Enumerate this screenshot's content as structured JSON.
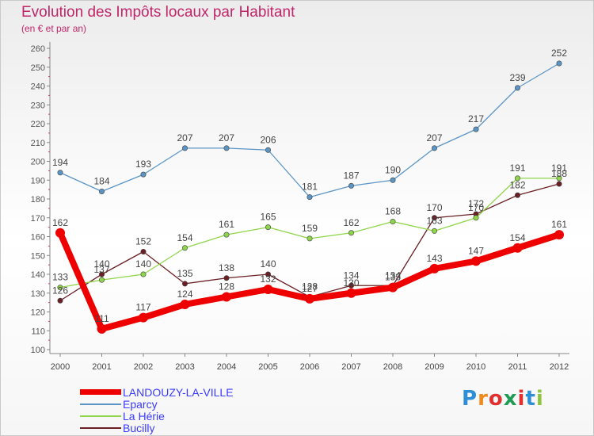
{
  "title": "Evolution des Impôts locaux par Habitant",
  "subtitle": "(en € et par an)",
  "logo_text": "Proxiti",
  "chart_data": {
    "type": "line",
    "x": [
      "2000",
      "2001",
      "2002",
      "2003",
      "2004",
      "2005",
      "2006",
      "2007",
      "2008",
      "2009",
      "2010",
      "2011",
      "2012"
    ],
    "ylim": [
      100,
      260
    ],
    "yticks": [
      100,
      110,
      120,
      130,
      140,
      150,
      160,
      170,
      180,
      190,
      200,
      210,
      220,
      230,
      240,
      250,
      260
    ],
    "grid": false,
    "legend_position": "bottom-left",
    "series": [
      {
        "name": "LANDOUZY-LA-VILLE",
        "color": "#ee0000",
        "values": [
          162,
          111,
          117,
          124,
          128,
          132,
          127,
          130,
          133,
          143,
          147,
          154,
          161
        ]
      },
      {
        "name": "Eparcy",
        "color": "#5b95c6",
        "values": [
          194,
          184,
          193,
          207,
          207,
          206,
          181,
          187,
          190,
          207,
          217,
          239,
          252
        ]
      },
      {
        "name": "La Hérie",
        "color": "#8fd54a",
        "values": [
          133,
          137,
          140,
          154,
          161,
          165,
          159,
          162,
          168,
          163,
          170,
          191,
          191
        ]
      },
      {
        "name": "Bucilly",
        "color": "#6b1f24",
        "values": [
          126,
          140,
          152,
          135,
          138,
          140,
          128,
          134,
          134,
          170,
          172,
          182,
          188
        ]
      }
    ]
  }
}
